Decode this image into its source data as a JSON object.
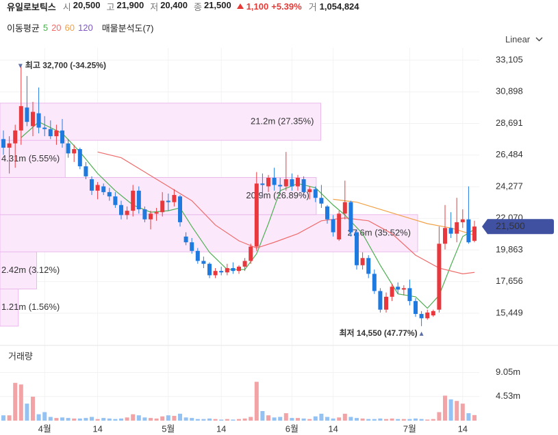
{
  "header": {
    "name": "유일로보틱스",
    "quotes": [
      {
        "label": "시",
        "value": "20,500"
      },
      {
        "label": "고",
        "value": "21,900"
      },
      {
        "label": "저",
        "value": "20,400"
      },
      {
        "label": "종",
        "value": "21,500"
      }
    ],
    "change": "1,100",
    "change_pct": "+5.39%",
    "volume_label": "거",
    "volume": "1,054,824"
  },
  "indicators": {
    "title": "이동평균",
    "profile_title": "매물분석도(7)"
  },
  "scale_menu": "Linear",
  "chart_data": [
    {
      "type": "candlestick",
      "ylim": [
        14500,
        33700
      ],
      "yticks": [
        {
          "value": 15449,
          "label": "15,449"
        },
        {
          "value": 17656,
          "label": "17,656"
        },
        {
          "value": 19863,
          "label": "19,863"
        },
        {
          "value": 22070,
          "label": "22,070"
        },
        {
          "value": 24277,
          "label": "24,277"
        },
        {
          "value": 26484,
          "label": "26,484"
        },
        {
          "value": 28691,
          "label": "28,691"
        },
        {
          "value": 30898,
          "label": "30,898"
        },
        {
          "value": 33105,
          "label": "33,105"
        }
      ],
      "up_color": "#e8383d",
      "down_color": "#1f7ae0",
      "open": [
        27600,
        27000,
        27300,
        28200,
        29800,
        28500,
        29400,
        28400,
        28300,
        27800,
        28200,
        27300,
        26600,
        26900,
        25700,
        24800,
        24000,
        24300,
        23900,
        23600,
        23000,
        22300,
        22600,
        24000,
        22700,
        22000,
        22400,
        22500,
        23300,
        23200,
        23600,
        20800,
        20400,
        19800,
        19100,
        18900,
        18100,
        18400,
        18300,
        18600,
        18400,
        18700,
        19100,
        20100,
        24500,
        24300,
        24900,
        24400,
        24300,
        24800,
        24300,
        24800,
        23900,
        24100,
        23500,
        22900,
        22000,
        20600,
        22400,
        23200,
        21100,
        18800,
        19300,
        18200,
        17000,
        15700,
        16600,
        17300,
        17100,
        17200,
        16300,
        15400,
        15100,
        15300,
        15700,
        20300,
        21400,
        21000,
        21800,
        22000,
        20500
      ],
      "high": [
        28200,
        27800,
        28600,
        32700,
        32000,
        30200,
        31200,
        29200,
        28900,
        28600,
        29000,
        27600,
        27200,
        27000,
        26000,
        25000,
        24600,
        24500,
        24200,
        23900,
        23300,
        22900,
        24400,
        24300,
        22900,
        22600,
        22800,
        23900,
        23800,
        24100,
        23700,
        21100,
        20700,
        20000,
        19400,
        19000,
        18600,
        18700,
        18900,
        19000,
        18800,
        19300,
        20300,
        25300,
        25200,
        25100,
        25600,
        24900,
        26700,
        25200,
        25100,
        25000,
        24300,
        24300,
        24400,
        23000,
        22300,
        22600,
        24700,
        23300,
        21300,
        19700,
        19500,
        18500,
        17200,
        16900,
        17500,
        17600,
        17400,
        17800,
        16500,
        15600,
        15700,
        15700,
        21500,
        23000,
        22500,
        23500,
        22700,
        24300,
        21900
      ],
      "low": [
        26500,
        25200,
        25600,
        27200,
        28500,
        27800,
        28000,
        27800,
        27600,
        27200,
        27000,
        26300,
        26000,
        25500,
        24800,
        23700,
        23400,
        23700,
        23300,
        22800,
        22000,
        22000,
        22200,
        22400,
        21800,
        21300,
        21900,
        22200,
        22600,
        22900,
        21500,
        20200,
        19600,
        18900,
        18600,
        17900,
        17900,
        18100,
        18100,
        18200,
        18200,
        18400,
        18900,
        19800,
        23500,
        23900,
        24000,
        23900,
        24000,
        24000,
        24000,
        23600,
        23400,
        23200,
        22800,
        21700,
        20800,
        20500,
        22000,
        20800,
        18500,
        18500,
        17900,
        16800,
        15500,
        15500,
        16300,
        16800,
        16700,
        16000,
        15200,
        14550,
        15000,
        15200,
        15500,
        19900,
        20700,
        20400,
        21400,
        20300,
        20400
      ],
      "close": [
        27000,
        27300,
        28200,
        29900,
        28800,
        29500,
        28400,
        28300,
        27800,
        28200,
        27300,
        26600,
        26900,
        25700,
        25000,
        24000,
        24400,
        23900,
        23600,
        23000,
        22300,
        22600,
        24000,
        22700,
        22000,
        22400,
        22500,
        23300,
        23200,
        23700,
        21800,
        20400,
        19800,
        19100,
        18900,
        18100,
        18400,
        18300,
        18600,
        18400,
        18700,
        19100,
        20100,
        24500,
        24400,
        24900,
        24400,
        24300,
        24800,
        24300,
        24900,
        23900,
        24100,
        23500,
        23100,
        22000,
        21100,
        22400,
        23200,
        21100,
        18800,
        19300,
        18200,
        17000,
        15700,
        16600,
        17300,
        17100,
        17200,
        16300,
        15400,
        15100,
        15500,
        15600,
        20300,
        21400,
        21000,
        21800,
        22000,
        20400,
        21500
      ],
      "moving_averages": [
        {
          "name": "5",
          "color": "#4caf50",
          "x": [
            3,
            6,
            10,
            13,
            16,
            19,
            22,
            25,
            28,
            30,
            32,
            35,
            38,
            41,
            43,
            45,
            47,
            50,
            53,
            56,
            58,
            61,
            64,
            67,
            70,
            72,
            74,
            76,
            78,
            80
          ],
          "values": [
            27700,
            28800,
            28000,
            26700,
            25200,
            24000,
            23000,
            22500,
            22600,
            22800,
            21500,
            19700,
            18500,
            18500,
            19600,
            21700,
            24000,
            24500,
            24200,
            23000,
            22300,
            21000,
            18800,
            16800,
            16600,
            15800,
            16700,
            18800,
            20800,
            21300
          ]
        },
        {
          "name": "20",
          "color": "#ef6b6b",
          "x": [
            16,
            20,
            24,
            28,
            32,
            36,
            40,
            43,
            46,
            50,
            54,
            58,
            62,
            66,
            70,
            74,
            78,
            80
          ],
          "values": [
            26700,
            26300,
            25300,
            24300,
            23300,
            21600,
            20500,
            20000,
            20400,
            21000,
            21900,
            22100,
            21900,
            21000,
            19500,
            18600,
            18200,
            18300
          ]
        },
        {
          "name": "60",
          "color": "#f2a145",
          "x": [
            56,
            60,
            64,
            68,
            72,
            76,
            80
          ],
          "values": [
            23400,
            23200,
            22700,
            22200,
            21700,
            21400,
            20900
          ]
        },
        {
          "name": "120",
          "color": "#7e57c2",
          "x": [],
          "values": []
        }
      ],
      "volume_profile": [
        {
          "range": [
            14550,
            17143
          ],
          "value": 1.21,
          "label": "1.21m (1.56%)"
        },
        {
          "range": [
            17143,
            19736
          ],
          "value": 2.42,
          "label": "2.42m (3.12%)"
        },
        {
          "range": [
            19736,
            22329
          ],
          "value": 27.6,
          "label": "27.6m (35.52%)"
        },
        {
          "range": [
            22329,
            24921
          ],
          "value": 20.9,
          "label": "20.9m (26.89%)"
        },
        {
          "range": [
            24921,
            27514
          ],
          "value": 4.31,
          "label": "4.31m (5.55%)"
        },
        {
          "range": [
            27514,
            30107
          ],
          "value": 21.2,
          "label": "21.2m (27.35%)"
        }
      ],
      "high_mark": {
        "value": 32700,
        "label": "최고 32,700 (-34.25%)"
      },
      "low_mark": {
        "value": 14550,
        "label": "최저 14,550 (47.77%)"
      },
      "last_price": {
        "value": 21500,
        "label": "21,500"
      }
    },
    {
      "type": "bar",
      "title": "거래량",
      "categories": [
        null,
        null,
        null,
        null,
        null,
        null,
        null,
        "4월",
        null,
        null,
        null,
        null,
        null,
        null,
        null,
        null,
        "14",
        null,
        null,
        null,
        null,
        null,
        null,
        null,
        null,
        null,
        null,
        null,
        "5월",
        null,
        null,
        null,
        null,
        null,
        null,
        null,
        null,
        "14",
        null,
        null,
        null,
        null,
        null,
        null,
        null,
        null,
        null,
        null,
        null,
        "6월",
        null,
        null,
        null,
        null,
        null,
        null,
        "14",
        null,
        null,
        null,
        null,
        null,
        null,
        null,
        null,
        null,
        null,
        null,
        null,
        "7월",
        null,
        null,
        null,
        null,
        null,
        null,
        null,
        null,
        "14",
        null,
        null
      ],
      "values": [
        1.0,
        1.0,
        7.1,
        6.8,
        3.2,
        4.5,
        1.2,
        1.6,
        0.7,
        0.5,
        0.6,
        0.5,
        0.4,
        0.4,
        0.5,
        0.7,
        0.3,
        0.5,
        0.4,
        0.3,
        0.4,
        0.6,
        1.2,
        1.0,
        0.6,
        0.5,
        0.4,
        0.8,
        1.0,
        0.9,
        1.3,
        0.6,
        0.5,
        0.3,
        0.3,
        0.4,
        0.3,
        0.2,
        0.3,
        0.2,
        0.3,
        0.4,
        0.7,
        7.3,
        1.8,
        1.0,
        0.6,
        0.7,
        1.4,
        0.5,
        0.5,
        0.4,
        0.3,
        0.8,
        1.3,
        0.7,
        0.4,
        0.6,
        1.3,
        0.7,
        0.5,
        0.4,
        0.3,
        0.3,
        0.4,
        0.3,
        0.4,
        0.3,
        0.3,
        0.3,
        0.4,
        0.3,
        0.2,
        0.3,
        1.6,
        4.7,
        4.0,
        3.7,
        3.2,
        1.4,
        1.05
      ],
      "ylim": [
        0,
        13.5
      ],
      "yticks": [
        {
          "value": 4.53,
          "label": "4.53m"
        },
        {
          "value": 9.05,
          "label": "9.05m"
        }
      ],
      "up_color": "#f2a3a6",
      "down_color": "#94c2f2"
    }
  ]
}
